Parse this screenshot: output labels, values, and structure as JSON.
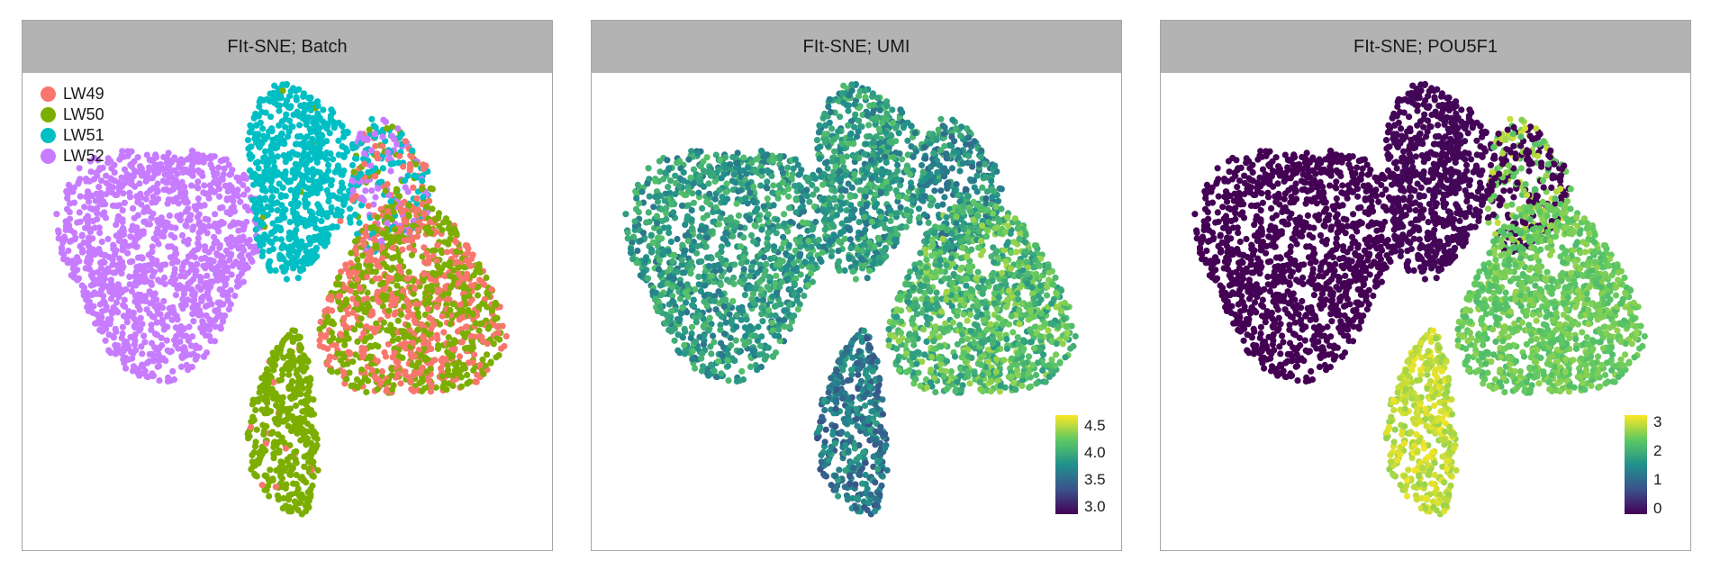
{
  "chart_data": [
    {
      "type": "scatter",
      "title": "FIt-SNE; Batch",
      "xlabel": "",
      "ylabel": "",
      "legend": {
        "placement": "top-left",
        "entries": [
          {
            "name": "LW49",
            "color": "#f8766d"
          },
          {
            "name": "LW50",
            "color": "#7cae00"
          },
          {
            "name": "LW51",
            "color": "#00bfc4"
          },
          {
            "name": "LW52",
            "color": "#c77cff"
          }
        ]
      },
      "grid": false,
      "color_by": "batch",
      "clusters": [
        {
          "cx": -2.4,
          "cy": 0.5,
          "rx": 2.4,
          "ry": 2.3,
          "n": 1200,
          "composition": {
            "LW52": 1.0
          }
        },
        {
          "cx": 1.0,
          "cy": 2.0,
          "rx": 1.3,
          "ry": 1.9,
          "n": 650,
          "composition": {
            "LW51": 0.97,
            "LW50": 0.02,
            "LW49": 0.01
          }
        },
        {
          "cx": 3.2,
          "cy": 1.8,
          "rx": 1.0,
          "ry": 1.3,
          "n": 300,
          "composition": {
            "LW51": 0.35,
            "LW52": 0.3,
            "LW49": 0.2,
            "LW50": 0.15
          }
        },
        {
          "cx": 3.8,
          "cy": -0.6,
          "rx": 2.2,
          "ry": 1.9,
          "n": 1100,
          "composition": {
            "LW49": 0.5,
            "LW50": 0.5
          }
        },
        {
          "cx": 0.7,
          "cy": -3.0,
          "rx": 0.85,
          "ry": 1.8,
          "n": 420,
          "composition": {
            "LW50": 0.97,
            "LW49": 0.03
          }
        }
      ]
    },
    {
      "type": "scatter",
      "title": "FIt-SNE; UMI",
      "xlabel": "",
      "ylabel": "",
      "color_scale": {
        "name": "viridis",
        "range": [
          2.9,
          4.7
        ],
        "ticks": [
          "3.0",
          "3.5",
          "4.0",
          "4.5"
        ],
        "tick_values": [
          3.0,
          3.5,
          4.0,
          4.5
        ],
        "colors": [
          "#440154",
          "#3b528b",
          "#21908c",
          "#5dc863",
          "#fde725"
        ],
        "placement": "bottom-right"
      },
      "grid": false,
      "color_by": "UMI",
      "cluster_levels": [
        3.9,
        3.9,
        3.8,
        4.15,
        3.65
      ]
    },
    {
      "type": "scatter",
      "title": "FIt-SNE; POU5F1",
      "xlabel": "",
      "ylabel": "",
      "color_scale": {
        "name": "viridis",
        "range": [
          0,
          3.4
        ],
        "ticks": [
          "0",
          "1",
          "2",
          "3"
        ],
        "tick_values": [
          0,
          1,
          2,
          3
        ],
        "colors": [
          "#440154",
          "#3b528b",
          "#21908c",
          "#5dc863",
          "#fde725"
        ],
        "placement": "bottom-right"
      },
      "grid": false,
      "color_by": "POU5F1",
      "cluster_levels": [
        0.0,
        0.05,
        1.2,
        2.6,
        3.1
      ]
    }
  ]
}
